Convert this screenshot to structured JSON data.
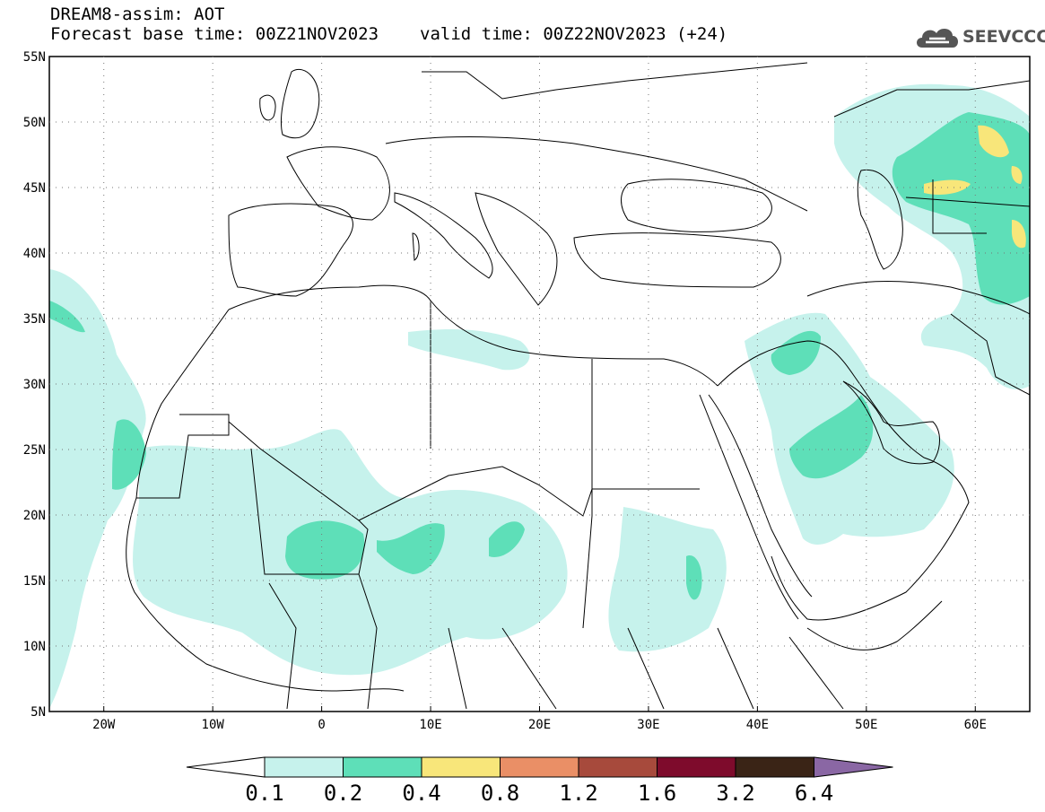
{
  "header": {
    "line1": "DREAM8-assim: AOT",
    "line2_base": "Forecast base time: 00Z21NOV2023",
    "line2_valid": "valid time: 00Z22NOV2023 (+24)"
  },
  "logo": {
    "text": "SEEVCCC",
    "icon": "cloud-icon"
  },
  "map": {
    "lat_labels": [
      "55N",
      "50N",
      "45N",
      "40N",
      "35N",
      "30N",
      "25N",
      "20N",
      "15N",
      "10N",
      "5N"
    ],
    "lon_labels": [
      "20W",
      "10W",
      "0",
      "10E",
      "20E",
      "30E",
      "40E",
      "50E",
      "60E"
    ],
    "lat_range": [
      5,
      55
    ],
    "lon_range": [
      -25,
      65
    ],
    "grid": "dotted"
  },
  "colorbar": {
    "levels": [
      "0.1",
      "0.2",
      "0.4",
      "0.8",
      "1.2",
      "1.6",
      "3.2",
      "6.4"
    ],
    "colors": [
      "#c6f2ec",
      "#5edfb8",
      "#f8e67a",
      "#ea8f66",
      "#a74a3c",
      "#7e0b2c",
      "#3a2416",
      "#8a67a4"
    ],
    "under_color": "#ffffff"
  },
  "fields": {
    "class_02_color": "#c6f2ec",
    "class_04_color": "#5edfb8",
    "class_08_color": "#f8e67a"
  }
}
